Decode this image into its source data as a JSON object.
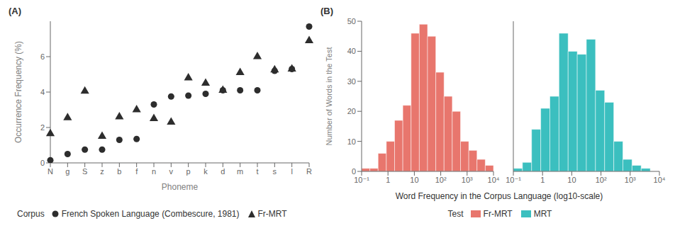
{
  "chart_data": [
    {
      "type": "scatter",
      "title": "(A)",
      "xlabel": "Phoneme",
      "ylabel": "Occurrence Frequency (%)",
      "categories": [
        "N",
        "g",
        "S",
        "z",
        "b",
        "f",
        "n",
        "v",
        "p",
        "k",
        "d",
        "m",
        "t",
        "s",
        "l",
        "R"
      ],
      "series": [
        {
          "name": "French Spoken Language (Combescure, 1981)",
          "color": "#2d2d2d",
          "marker": "o",
          "values": [
            0.15,
            0.5,
            0.75,
            0.75,
            1.3,
            1.35,
            3.3,
            3.75,
            3.8,
            3.9,
            4.1,
            4.1,
            4.1,
            5.2,
            5.3,
            7.7
          ]
        },
        {
          "name": "Fr-MRT",
          "color": "#2d2d2d",
          "marker": "^",
          "values": [
            1.65,
            2.55,
            4.05,
            1.5,
            2.6,
            3.0,
            2.5,
            2.3,
            4.8,
            4.5,
            4.1,
            5.1,
            6.0,
            5.25,
            5.3,
            6.9
          ]
        }
      ],
      "ylim": [
        0,
        8
      ],
      "yticks": [
        0,
        2,
        4,
        6
      ],
      "grid": false,
      "legend": "bottom",
      "annotations": [
        "Corpus"
      ]
    },
    {
      "type": "histogram",
      "title": "(B)",
      "xlabel": "Word Frequency in the Corpus Language (log10-scale)",
      "ylabel": "Number of Words in the Test",
      "log": "x",
      "bins": [
        0.1,
        0.2053525,
        0.4216965,
        0.8659643,
        1.778279,
        3.651741,
        7.498942,
        15.39927,
        31.62278,
        64.93816,
        133.3521,
        273.8419,
        562.3413,
        1154.782,
        2371.374,
        4869.675,
        10000
      ],
      "series": [
        {
          "name": "Fr-MRT",
          "color": "#E8766D",
          "values": [
            1,
            1,
            6,
            10,
            17,
            22,
            46,
            49,
            45,
            33,
            25,
            20,
            10,
            7,
            4,
            2
          ]
        }
      ],
      "xlim": [
        0.1,
        10000
      ],
      "xticks": [
        {
          "value": 0.1,
          "label": "10⁻¹"
        },
        1,
        10,
        {
          "value": 100,
          "label": "10²"
        },
        {
          "value": 1000,
          "label": "10³"
        },
        {
          "value": 10000,
          "label": "10⁴"
        }
      ],
      "ylim": [
        0,
        50
      ],
      "yticks": [
        0,
        10,
        20,
        30,
        40,
        50
      ],
      "grid": false,
      "legend": "bottom",
      "annotations": [
        "Test"
      ]
    },
    {
      "type": "histogram",
      "log": "x",
      "bins": [
        0.1,
        0.2053525,
        0.4216965,
        0.8659643,
        1.778279,
        3.651741,
        7.498942,
        15.39927,
        31.62278,
        64.93816,
        133.3521,
        273.8419,
        562.3413,
        1154.782,
        2371.374,
        4869.675,
        10000
      ],
      "series": [
        {
          "name": "MRT",
          "color": "#3BBFBF",
          "values": [
            1,
            3,
            14,
            21,
            25,
            46,
            40,
            39,
            44,
            27,
            23,
            10,
            4,
            2,
            1,
            0
          ]
        }
      ],
      "xlim": [
        0.1,
        10000
      ],
      "xticks": [
        {
          "value": 0.1,
          "label": "10⁻¹"
        },
        1,
        10,
        {
          "value": 100,
          "label": "10²"
        },
        {
          "value": 1000,
          "label": "10³"
        },
        {
          "value": 10000,
          "label": "10⁴"
        }
      ],
      "ylim": [
        0,
        50
      ],
      "yticks": [
        0,
        10,
        20,
        30,
        40,
        50
      ],
      "grid": false,
      "tick_labels": "x"
    }
  ]
}
